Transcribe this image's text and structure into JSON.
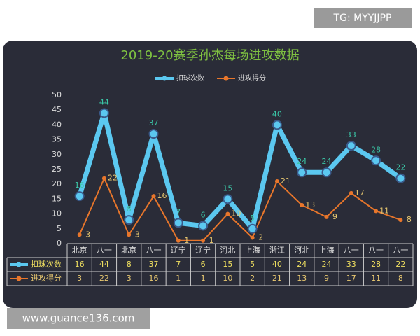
{
  "chart_data": {
    "type": "line",
    "title": "2019-20赛季孙杰每场进攻数据",
    "categories": [
      "北京",
      "八一",
      "北京",
      "八一",
      "辽宁",
      "辽宁",
      "河北",
      "上海",
      "浙江",
      "河北",
      "上海",
      "八一",
      "八一",
      "八一"
    ],
    "series": [
      {
        "name": "扣球次数",
        "color": "#5bc8f0",
        "values": [
          16,
          44,
          8,
          37,
          7,
          6,
          15,
          5,
          40,
          24,
          24,
          33,
          28,
          22
        ]
      },
      {
        "name": "进攻得分",
        "color": "#e8762b",
        "values": [
          3,
          22,
          3,
          16,
          1,
          1,
          10,
          2,
          21,
          13,
          9,
          17,
          11,
          8
        ]
      }
    ],
    "ylim": [
      0,
      50
    ],
    "yticks": [
      0,
      5,
      10,
      15,
      20,
      25,
      30,
      35,
      40,
      45,
      50
    ],
    "grid": false,
    "annotations": [
      "TG: MYYJJPP",
      "www.guance136.com"
    ]
  }
}
